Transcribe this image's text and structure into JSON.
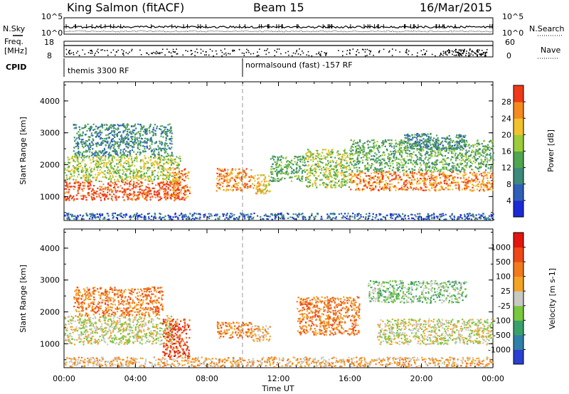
{
  "header": {
    "station": "King Salmon (fitACF)",
    "beam": "Beam 15",
    "date": "16/Mar/2015"
  },
  "top_panels": {
    "nsky_label": "N.Sky",
    "nsearch_label": "N.Search",
    "nsky_ticks": [
      "10^5",
      "10^0"
    ],
    "nsearch_ticks": [
      "10^5",
      "10^0"
    ],
    "freq_label_1": "Freq.",
    "freq_label_2": "[MHz]",
    "freq_ticks": [
      "18",
      "8"
    ],
    "nave_label": "Nave",
    "nave_ticks": [
      "60",
      "0"
    ],
    "cpid_label": "CPID",
    "cpid_segments": [
      "themis 3300 RF",
      "normalsound (fast) -157 RF"
    ]
  },
  "chart_data": [
    {
      "type": "heatmap",
      "name": "power",
      "ylabel": "Slant Range [km]",
      "y_ticks": [
        "1000",
        "2000",
        "3000",
        "4000"
      ],
      "ylim": [
        250,
        4600
      ],
      "xlim_hours": [
        0,
        24
      ],
      "colorbar_label": "Power [dB]",
      "colorbar_ticks": [
        "4",
        "8",
        "12",
        "16",
        "20",
        "24",
        "28"
      ],
      "colorbar_colors": [
        "#1c2ad6",
        "#2f5fb8",
        "#3d8a7a",
        "#4fa64f",
        "#9ccc3a",
        "#f2c12e",
        "#f58a1f",
        "#ee3a18"
      ],
      "regions": [
        {
          "t": [
            0.0,
            6.5
          ],
          "r": [
            900,
            1500
          ],
          "level": 7
        },
        {
          "t": [
            0.0,
            6.5
          ],
          "r": [
            1500,
            2300
          ],
          "level": 4
        },
        {
          "t": [
            0.5,
            6.0
          ],
          "r": [
            2300,
            3300
          ],
          "level": 2
        },
        {
          "t": [
            6.0,
            7.0
          ],
          "r": [
            900,
            1900
          ],
          "level": 6
        },
        {
          "t": [
            8.5,
            10.5
          ],
          "r": [
            1200,
            1900
          ],
          "level": 6
        },
        {
          "t": [
            10.5,
            11.5
          ],
          "r": [
            1100,
            1700
          ],
          "level": 5
        },
        {
          "t": [
            11.5,
            13.5
          ],
          "r": [
            1500,
            2300
          ],
          "level": 3
        },
        {
          "t": [
            13.5,
            16.0
          ],
          "r": [
            1300,
            2500
          ],
          "level": 4
        },
        {
          "t": [
            16.0,
            24.0
          ],
          "r": [
            1200,
            1800
          ],
          "level": 6
        },
        {
          "t": [
            16.0,
            24.0
          ],
          "r": [
            1800,
            2800
          ],
          "level": 3
        },
        {
          "t": [
            19.0,
            22.5
          ],
          "r": [
            2500,
            3000
          ],
          "level": 2
        },
        {
          "t": [
            0.0,
            24.0
          ],
          "r": [
            300,
            500
          ],
          "level": 1
        }
      ]
    },
    {
      "type": "heatmap",
      "name": "velocity",
      "ylabel": "Slant Range [km]",
      "y_ticks": [
        "1000",
        "2000",
        "3000",
        "4000"
      ],
      "ylim": [
        250,
        4600
      ],
      "xlim_hours": [
        0,
        24
      ],
      "x_ticks": [
        "00:00",
        "04:00",
        "08:00",
        "12:00",
        "16:00",
        "20:00",
        "00:00"
      ],
      "xlabel": "Time UT",
      "colorbar_label": "Velocity [m s-1]",
      "colorbar_ticks": [
        "1000",
        "500",
        "100",
        "25",
        "-25",
        "-100",
        "-500",
        "-1000"
      ],
      "colorbar_colors": [
        "#2a3fd0",
        "#2f7fa8",
        "#3aa06a",
        "#79c840",
        "#c9c9c4",
        "#f3a425",
        "#f17a1c",
        "#ee4818",
        "#e2160f"
      ],
      "regions": [
        {
          "t": [
            0.0,
            6.0
          ],
          "r": [
            1000,
            1900
          ],
          "level": 4
        },
        {
          "t": [
            0.5,
            5.5
          ],
          "r": [
            1900,
            2800
          ],
          "level": 6
        },
        {
          "t": [
            5.5,
            7.0
          ],
          "r": [
            600,
            1800
          ],
          "level": 7
        },
        {
          "t": [
            8.5,
            10.5
          ],
          "r": [
            1200,
            1700
          ],
          "level": 6
        },
        {
          "t": [
            10.5,
            11.5
          ],
          "r": [
            1100,
            1600
          ],
          "level": 5
        },
        {
          "t": [
            13.0,
            16.5
          ],
          "r": [
            1300,
            2500
          ],
          "level": 6
        },
        {
          "t": [
            17.5,
            24.0
          ],
          "r": [
            1000,
            1800
          ],
          "level": 4
        },
        {
          "t": [
            17.0,
            22.5
          ],
          "r": [
            2300,
            3000
          ],
          "level": 3
        },
        {
          "t": [
            0.0,
            24.0
          ],
          "r": [
            300,
            600
          ],
          "level": 5
        }
      ]
    }
  ]
}
